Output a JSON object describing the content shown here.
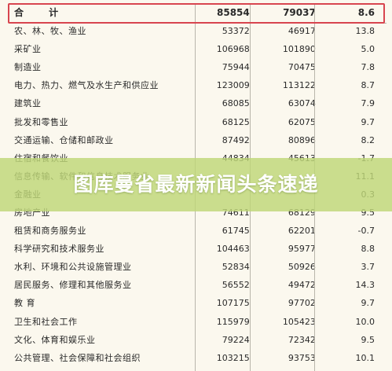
{
  "total": {
    "label": "合 计",
    "v1": "85854",
    "v2": "79037",
    "v3": "8.6"
  },
  "rows": [
    {
      "label": "农、林、牧、渔业",
      "v1": "53372",
      "v2": "46917",
      "v3": "13.8"
    },
    {
      "label": "采矿业",
      "v1": "106968",
      "v2": "101890",
      "v3": "5.0"
    },
    {
      "label": "制造业",
      "v1": "75944",
      "v2": "70475",
      "v3": "7.8"
    },
    {
      "label": "电力、热力、燃气及水生产和供应业",
      "v1": "123009",
      "v2": "113122",
      "v3": "8.7"
    },
    {
      "label": "建筑业",
      "v1": "68085",
      "v2": "63074",
      "v3": "7.9"
    },
    {
      "label": "批发和零售业",
      "v1": "68125",
      "v2": "62075",
      "v3": "9.7"
    },
    {
      "label": "交通运输、仓储和邮政业",
      "v1": "87492",
      "v2": "80896",
      "v3": "8.2"
    },
    {
      "label": "住宿和餐饮业",
      "v1": "44834",
      "v2": "45613",
      "v3": "-1.7"
    },
    {
      "label": "信息传输、软件和信息技术服务业",
      "v1": "",
      "v2": "",
      "v3": "11.1"
    },
    {
      "label": "金融业",
      "v1": "",
      "v2": "",
      "v3": "0.3"
    },
    {
      "label": "房地产业",
      "v1": "74611",
      "v2": "68129",
      "v3": "9.5"
    },
    {
      "label": "租赁和商务服务业",
      "v1": "61745",
      "v2": "62201",
      "v3": "-0.7"
    },
    {
      "label": "科学研究和技术服务业",
      "v1": "104463",
      "v2": "95977",
      "v3": "8.8"
    },
    {
      "label": "水利、环境和公共设施管理业",
      "v1": "52834",
      "v2": "50926",
      "v3": "3.7"
    },
    {
      "label": "居民服务、修理和其他服务业",
      "v1": "56552",
      "v2": "49472",
      "v3": "14.3"
    },
    {
      "label": "教 育",
      "v1": "107175",
      "v2": "97702",
      "v3": "9.7"
    },
    {
      "label": "卫生和社会工作",
      "v1": "115979",
      "v2": "105423",
      "v3": "10.0"
    },
    {
      "label": "文化、体育和娱乐业",
      "v1": "79224",
      "v2": "72342",
      "v3": "9.5"
    },
    {
      "label": "公共管理、社会保障和社会组织",
      "v1": "103215",
      "v2": "93753",
      "v3": "10.1"
    }
  ],
  "watermark": {
    "text": "图库曼省最新新闻头条速递"
  },
  "colors": {
    "highlight": "#d8454f",
    "banner": "#bed778",
    "background": "#fbf8ee"
  }
}
